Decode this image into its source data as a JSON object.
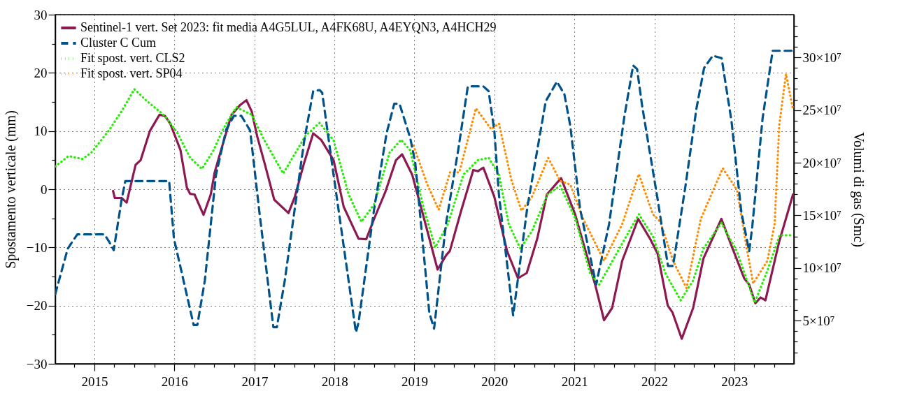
{
  "chart_data": {
    "type": "line",
    "ylabel": "Spostamento verticale (mm)",
    "y2label": "Volumi di gas (Smc)",
    "xlim": [
      "2014-07-06",
      "2023-09-30"
    ],
    "xticks": [
      {
        "value": "2014-10-01",
        "label": null
      },
      {
        "value": "2015-01-01",
        "label": "2015"
      },
      {
        "value": "2015-04-01",
        "label": null
      },
      {
        "value": "2015-07-01",
        "label": null
      },
      {
        "value": "2015-10-01",
        "label": null
      },
      {
        "value": "2016-01-01",
        "label": "2016"
      },
      {
        "value": "2016-04-01",
        "label": null
      },
      {
        "value": "2016-07-01",
        "label": null
      },
      {
        "value": "2016-10-01",
        "label": null
      },
      {
        "value": "2017-01-01",
        "label": "2017"
      },
      {
        "value": "2017-04-01",
        "label": null
      },
      {
        "value": "2017-07-01",
        "label": null
      },
      {
        "value": "2017-10-01",
        "label": null
      },
      {
        "value": "2018-01-01",
        "label": "2018"
      },
      {
        "value": "2018-04-01",
        "label": null
      },
      {
        "value": "2018-07-01",
        "label": null
      },
      {
        "value": "2018-10-01",
        "label": null
      },
      {
        "value": "2019-01-01",
        "label": "2019"
      },
      {
        "value": "2019-04-01",
        "label": null
      },
      {
        "value": "2019-07-01",
        "label": null
      },
      {
        "value": "2019-10-01",
        "label": null
      },
      {
        "value": "2020-01-01",
        "label": "2020"
      },
      {
        "value": "2020-04-01",
        "label": null
      },
      {
        "value": "2020-07-01",
        "label": null
      },
      {
        "value": "2020-10-01",
        "label": null
      },
      {
        "value": "2021-01-01",
        "label": "2021"
      },
      {
        "value": "2021-04-01",
        "label": null
      },
      {
        "value": "2021-07-01",
        "label": null
      },
      {
        "value": "2021-10-01",
        "label": null
      },
      {
        "value": "2022-01-01",
        "label": "2022"
      },
      {
        "value": "2022-04-01",
        "label": null
      },
      {
        "value": "2022-07-01",
        "label": null
      },
      {
        "value": "2022-10-01",
        "label": null
      },
      {
        "value": "2023-01-01",
        "label": "2023"
      },
      {
        "value": "2023-04-01",
        "label": null
      },
      {
        "value": "2023-07-01",
        "label": null
      }
    ],
    "ylim": [
      -30,
      30
    ],
    "yticks": [
      {
        "value": -30,
        "label": "−30"
      },
      {
        "value": -25,
        "label": null
      },
      {
        "value": -20,
        "label": "−20"
      },
      {
        "value": -15,
        "label": null
      },
      {
        "value": -10,
        "label": "−10"
      },
      {
        "value": -5,
        "label": null
      },
      {
        "value": 0,
        "label": "0"
      },
      {
        "value": 5,
        "label": null
      },
      {
        "value": 10,
        "label": "10"
      },
      {
        "value": 15,
        "label": null
      },
      {
        "value": 20,
        "label": "20"
      },
      {
        "value": 25,
        "label": null
      },
      {
        "value": 30,
        "label": "30"
      }
    ],
    "y2lim": [
      9100000.0,
      340600000.0
    ],
    "y2ticks": [
      {
        "value": 20000000.0,
        "label": null
      },
      {
        "value": 30000000.0,
        "label": null
      },
      {
        "value": 40000000.0,
        "label": null
      },
      {
        "value": 50000000.0,
        "label": "5×10⁷"
      },
      {
        "value": 60000000.0,
        "label": null
      },
      {
        "value": 70000000.0,
        "label": null
      },
      {
        "value": 80000000.0,
        "label": null
      },
      {
        "value": 90000000.0,
        "label": null
      },
      {
        "value": 100000000.0,
        "label": "10×10⁷"
      },
      {
        "value": 110000000.0,
        "label": null
      },
      {
        "value": 120000000.0,
        "label": null
      },
      {
        "value": 130000000.0,
        "label": null
      },
      {
        "value": 140000000.0,
        "label": null
      },
      {
        "value": 150000000.0,
        "label": "15×10⁷"
      },
      {
        "value": 160000000.0,
        "label": null
      },
      {
        "value": 170000000.0,
        "label": null
      },
      {
        "value": 180000000.0,
        "label": null
      },
      {
        "value": 190000000.0,
        "label": null
      },
      {
        "value": 200000000.0,
        "label": "20×10⁷"
      },
      {
        "value": 210000000.0,
        "label": null
      },
      {
        "value": 220000000.0,
        "label": null
      },
      {
        "value": 230000000.0,
        "label": null
      },
      {
        "value": 240000000.0,
        "label": null
      },
      {
        "value": 250000000.0,
        "label": "25×10⁷"
      },
      {
        "value": 260000000.0,
        "label": null
      },
      {
        "value": 270000000.0,
        "label": null
      },
      {
        "value": 280000000.0,
        "label": null
      },
      {
        "value": 290000000.0,
        "label": null
      },
      {
        "value": 300000000.0,
        "label": "30×10⁷"
      },
      {
        "value": 310000000.0,
        "label": null
      },
      {
        "value": 320000000.0,
        "label": null
      },
      {
        "value": 330000000.0,
        "label": null
      }
    ],
    "grid": true,
    "legend": "top left",
    "series": [
      {
        "name": "Sentinel-1 vert. Set 2023: fit media A4G5LUL, A4FK68U, A4EYQN3, A4HCH29",
        "color": "#8c1a50",
        "line_style": "solid",
        "x": [
          "2015-03-27",
          "2015-04-04",
          "2015-05-05",
          "2015-05-28",
          "2015-07-08",
          "2015-07-31",
          "2015-09-11",
          "2015-10-25",
          "2015-11-19",
          "2015-12-13",
          "2016-01-29",
          "2016-02-27",
          "2016-03-13",
          "2016-04-02",
          "2016-05-13",
          "2016-06-15",
          "2016-07-03",
          "2016-08-01",
          "2016-09-18",
          "2016-10-28",
          "2016-11-25",
          "2016-12-19",
          "2017-01-13",
          "2017-02-15",
          "2017-04-01",
          "2017-06-05",
          "2017-07-04",
          "2017-08-16",
          "2017-09-26",
          "2017-11-01",
          "2017-12-28",
          "2018-02-12",
          "2018-04-21",
          "2018-05-26",
          "2018-07-01",
          "2018-08-21",
          "2018-10-09",
          "2018-11-06",
          "2018-12-22",
          "2019-02-06",
          "2019-04-17",
          "2019-05-27",
          "2019-06-12",
          "2019-08-01",
          "2019-09-27",
          "2019-10-18",
          "2019-11-12",
          "2020-01-01",
          "2020-02-28",
          "2020-04-18",
          "2020-05-28",
          "2020-07-15",
          "2020-08-28",
          "2020-11-01",
          "2021-01-04",
          "2021-04-07",
          "2021-05-16",
          "2021-06-22",
          "2021-08-07",
          "2021-10-19",
          "2021-12-12",
          "2022-01-16",
          "2022-03-03",
          "2022-03-25",
          "2022-05-06",
          "2022-06-27",
          "2022-08-13",
          "2022-11-03",
          "2022-12-19",
          "2023-02-15",
          "2023-03-10",
          "2023-04-07",
          "2023-05-01",
          "2023-05-23",
          "2023-07-25",
          "2023-09-26"
        ],
        "values": [
          -0.3,
          -1.5,
          -1.5,
          -2.3,
          4.2,
          5.0,
          10.0,
          12.8,
          12.6,
          11.3,
          6.7,
          0.3,
          -0.8,
          -0.9,
          -4.4,
          -0.9,
          2.9,
          6.7,
          12.8,
          14.5,
          15.3,
          13.4,
          9.1,
          4.6,
          -1.8,
          -4.1,
          -1.3,
          4.6,
          9.6,
          8.5,
          5.0,
          -3.0,
          -8.5,
          -8.6,
          -5.1,
          -0.5,
          5.0,
          6.0,
          2.5,
          -3.9,
          -13.8,
          -11.3,
          -10.6,
          -3.9,
          3.3,
          3.1,
          3.7,
          -1.3,
          -10.6,
          -15.3,
          -14.4,
          -8.5,
          -0.9,
          1.9,
          -4.3,
          -16.6,
          -22.5,
          -20.4,
          -12.3,
          -5.1,
          -8.5,
          -11.1,
          -20.0,
          -21.2,
          -25.7,
          -20.4,
          -11.9,
          -5.1,
          -9.7,
          -15.3,
          -16.4,
          -19.6,
          -18.6,
          -19.1,
          -9.0,
          -0.9
        ]
      },
      {
        "name": "Cluster C Cum",
        "color": "#00538a",
        "line_style": "dashed",
        "axis": "y2",
        "x": [
          "2014-07-06",
          "2014-08-01",
          "2014-09-01",
          "2014-09-27",
          "2014-10-15",
          "2015-02-15",
          "2015-03-08",
          "2015-03-30",
          "2015-05-05",
          "2015-05-22",
          "2015-12-08",
          "2015-12-30",
          "2016-03-29",
          "2016-04-15",
          "2016-05-19",
          "2016-07-09",
          "2016-08-25",
          "2016-09-29",
          "2016-11-02",
          "2016-12-12",
          "2017-01-23",
          "2017-03-28",
          "2017-04-13",
          "2017-05-19",
          "2017-08-16",
          "2017-09-26",
          "2017-10-25",
          "2017-11-06",
          "2017-12-28",
          "2018-04-09",
          "2018-04-21",
          "2018-07-01",
          "2018-08-27",
          "2018-10-01",
          "2018-10-25",
          "2018-12-13",
          "2019-01-05",
          "2019-03-10",
          "2019-04-01",
          "2019-05-25",
          "2019-07-20",
          "2019-09-02",
          "2019-11-12",
          "2019-12-06",
          "2020-01-01",
          "2020-01-22",
          "2020-03-27",
          "2020-04-14",
          "2020-05-31",
          "2020-08-23",
          "2020-10-13",
          "2020-11-16",
          "2020-12-13",
          "2021-01-27",
          "2021-04-10",
          "2021-06-08",
          "2021-08-17",
          "2021-09-26",
          "2021-10-14",
          "2021-11-06",
          "2022-01-16",
          "2022-03-04",
          "2022-03-27",
          "2022-05-22",
          "2022-07-12",
          "2022-08-16",
          "2022-09-25",
          "2022-11-04",
          "2022-12-19",
          "2023-02-02",
          "2023-03-10",
          "2023-03-24",
          "2023-05-10",
          "2023-06-25",
          "2023-09-26"
        ],
        "values": [
          75200000.0,
          95000000.0,
          118400000.0,
          126600000.0,
          132000000.0,
          132000000.0,
          125400000.0,
          117000000.0,
          165000000.0,
          182600000.0,
          182600000.0,
          128000000.0,
          46000000.0,
          46000000.0,
          88000000.0,
          188500000.0,
          231600000.0,
          244500000.0,
          244500000.0,
          230500000.0,
          153500000.0,
          43800000.0,
          43800000.0,
          88000000.0,
          221000000.0,
          268000000.0,
          269000000.0,
          266500000.0,
          188500000.0,
          39000000.0,
          48300000.0,
          155700000.0,
          228000000.0,
          256000000.0,
          256000000.0,
          223500000.0,
          200000000.0,
          57700000.0,
          42500000.0,
          141700000.0,
          212000000.0,
          272500000.0,
          272500000.0,
          268000000.0,
          230500000.0,
          169800000.0,
          55000000.0,
          83600000.0,
          158000000.0,
          258500000.0,
          277000000.0,
          265000000.0,
          235000000.0,
          155700000.0,
          84400000.0,
          141700000.0,
          244000000.0,
          292300000.0,
          289000000.0,
          254000000.0,
          165000000.0,
          102000000.0,
          102000000.0,
          176600000.0,
          251400000.0,
          290000000.0,
          301700000.0,
          299300000.0,
          239700000.0,
          153300000.0,
          116000000.0,
          139400000.0,
          242000000.0,
          306300000.0,
          306300000.0
        ]
      },
      {
        "name": "Fit spost. vert. CLS2",
        "color": "#22ee00",
        "line_style": "dotted",
        "x": [
          "2014-07-06",
          "2014-09-05",
          "2014-11-08",
          "2014-12-18",
          "2015-03-08",
          "2015-05-05",
          "2015-07-02",
          "2015-08-30",
          "2015-11-19",
          "2016-01-16",
          "2016-03-13",
          "2016-05-06",
          "2016-06-28",
          "2016-08-13",
          "2016-10-10",
          "2016-12-19",
          "2017-02-15",
          "2017-05-12",
          "2017-08-22",
          "2017-10-25",
          "2017-12-28",
          "2018-03-07",
          "2018-05-04",
          "2018-07-01",
          "2018-09-10",
          "2018-11-01",
          "2018-12-13",
          "2019-02-08",
          "2019-04-06",
          "2019-06-03",
          "2019-08-13",
          "2019-10-18",
          "2019-12-06",
          "2020-01-22",
          "2020-03-07",
          "2020-04-29",
          "2020-06-21",
          "2020-08-31",
          "2020-10-28",
          "2021-01-06",
          "2021-03-13",
          "2021-04-24",
          "2021-07-25",
          "2021-10-22",
          "2021-12-25",
          "2022-02-21",
          "2022-05-01",
          "2022-06-27",
          "2022-08-13",
          "2022-11-03",
          "2023-01-13",
          "2023-04-04",
          "2023-06-01",
          "2023-07-27",
          "2023-09-26"
        ],
        "values": [
          3.9,
          5.7,
          5.2,
          6.3,
          10.1,
          13.4,
          17.2,
          15.1,
          12.6,
          9.6,
          5.4,
          3.5,
          6.7,
          10.5,
          14.1,
          12.8,
          8.4,
          2.7,
          9.2,
          11.4,
          8.4,
          -0.9,
          -5.6,
          -2.6,
          6.3,
          8.5,
          6.7,
          -2.6,
          -10.0,
          -6.0,
          2.5,
          5.0,
          5.4,
          2.5,
          -6.0,
          -10.2,
          -7.2,
          -0.9,
          0.6,
          -5.1,
          -14.4,
          -16.4,
          -10.2,
          -4.3,
          -8.1,
          -14.5,
          -19.1,
          -15.7,
          -10.2,
          -5.8,
          -10.7,
          -19.5,
          -14.0,
          -7.9,
          -7.9
        ]
      },
      {
        "name": "Fit spost. vert. SP04",
        "color": "#ff8c00",
        "line_style": "dotted",
        "x": [
          "2018-12-28",
          "2019-03-01",
          "2019-04-22",
          "2019-06-13",
          "2019-07-25",
          "2019-10-09",
          "2019-12-18",
          "2020-01-22",
          "2020-03-19",
          "2020-05-04",
          "2020-06-21",
          "2020-09-03",
          "2020-10-28",
          "2020-12-13",
          "2021-02-10",
          "2021-05-16",
          "2021-08-07",
          "2021-10-22",
          "2021-12-25",
          "2022-01-28",
          "2022-03-27",
          "2022-05-28",
          "2022-08-01",
          "2022-11-09",
          "2023-01-13",
          "2023-02-27",
          "2023-03-28",
          "2023-06-01",
          "2023-07-04",
          "2023-07-25",
          "2023-08-25",
          "2023-09-26"
        ],
        "values": [
          7.5,
          0.8,
          -3.5,
          2.9,
          2.9,
          13.9,
          10.3,
          11.3,
          1.6,
          -3.7,
          -1.3,
          5.4,
          1.4,
          0.8,
          -5.1,
          -12.3,
          -6.0,
          2.6,
          -4.3,
          -5.6,
          -12.3,
          -17.0,
          -5.1,
          3.6,
          -0.1,
          -10.2,
          -16.2,
          -12.3,
          -6.0,
          10.9,
          19.8,
          13.7
        ]
      }
    ]
  }
}
